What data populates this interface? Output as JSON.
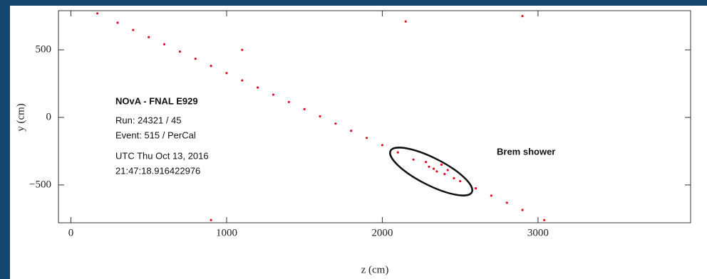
{
  "chart_data": {
    "type": "scatter",
    "x_label": "z (cm)",
    "y_label": "y (cm)",
    "x": [
      170,
      300,
      400,
      500,
      600,
      700,
      800,
      900,
      1000,
      1100,
      1200,
      1300,
      1400,
      1500,
      1600,
      1700,
      1800,
      1900,
      2000,
      2100,
      2200,
      2300,
      2400,
      2500,
      2600,
      2700,
      2800,
      2900,
      3040,
      2280,
      2350,
      2420,
      2460,
      2380,
      2330,
      1100,
      2900,
      2150,
      900
    ],
    "values": [
      770,
      701,
      647,
      594,
      541,
      487,
      434,
      381,
      328,
      274,
      221,
      168,
      114,
      61,
      8,
      -46,
      -99,
      -152,
      -205,
      -259,
      -312,
      -365,
      -419,
      -472,
      -525,
      -579,
      -632,
      -685,
      -760,
      -330,
      -400,
      -390,
      -450,
      -350,
      -380,
      500,
      750,
      710,
      -760
    ],
    "color": "#e0102a",
    "xlim": [
      -80,
      3980
    ],
    "ylim": [
      -780,
      790
    ],
    "xticks": [
      0,
      1000,
      2000,
      3000
    ],
    "yticks": [
      500,
      0,
      {
        "value": -500,
        "label": "−500"
      }
    ],
    "annotations": [
      "NOvA - FNAL E929",
      "Run:  24321 / 45",
      "Event: 515 / PerCal",
      "UTC Thu Oct 13, 2016",
      "21:47:18.916422976",
      "Brem shower"
    ]
  }
}
